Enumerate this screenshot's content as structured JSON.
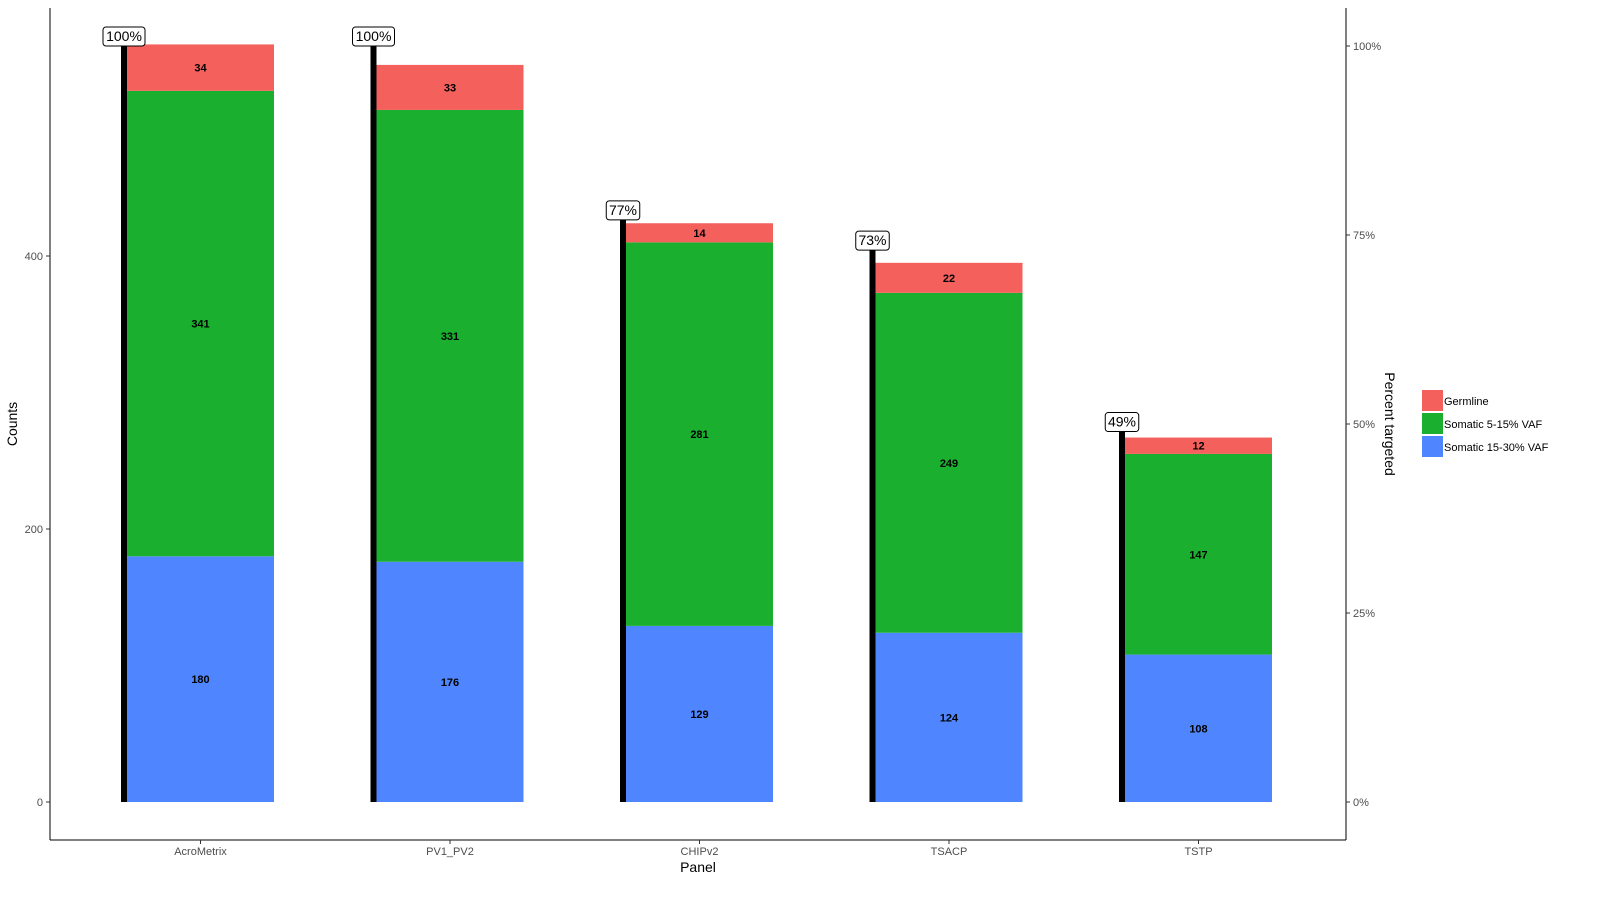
{
  "chart_data": {
    "type": "bar",
    "stacked": true,
    "xlabel": "Panel",
    "ylabel": "Counts",
    "y2label": "Percent targeted",
    "ylim": [
      0,
      560
    ],
    "y_ticks": [
      0,
      200,
      400
    ],
    "y2_ticks": [
      "0%",
      "25%",
      "50%",
      "75%",
      "100%"
    ],
    "categories": [
      "AcroMetrix",
      "PV1_PV2",
      "CHIPv2",
      "TSACP",
      "TSTP"
    ],
    "series": [
      {
        "name": "Somatic 15-30% VAF",
        "color": "#4F86FF",
        "values": [
          180,
          176,
          129,
          124,
          108
        ]
      },
      {
        "name": "Somatic 5-15% VAF",
        "color": "#1AAF2F",
        "values": [
          341,
          331,
          281,
          249,
          147
        ]
      },
      {
        "name": "Germline",
        "color": "#F4605C",
        "values": [
          34,
          33,
          14,
          22,
          12
        ]
      }
    ],
    "percent_targeted": [
      100,
      100,
      77,
      73,
      49
    ],
    "percent_labels": [
      "100%",
      "100%",
      "77%",
      "73%",
      "49%"
    ],
    "legend": {
      "position": "right",
      "entries": [
        {
          "name": "Germline",
          "color": "#F4605C"
        },
        {
          "name": "Somatic 5-15% VAF",
          "color": "#1AAF2F"
        },
        {
          "name": "Somatic 15-30% VAF",
          "color": "#4F86FF"
        }
      ]
    },
    "grid": false
  }
}
